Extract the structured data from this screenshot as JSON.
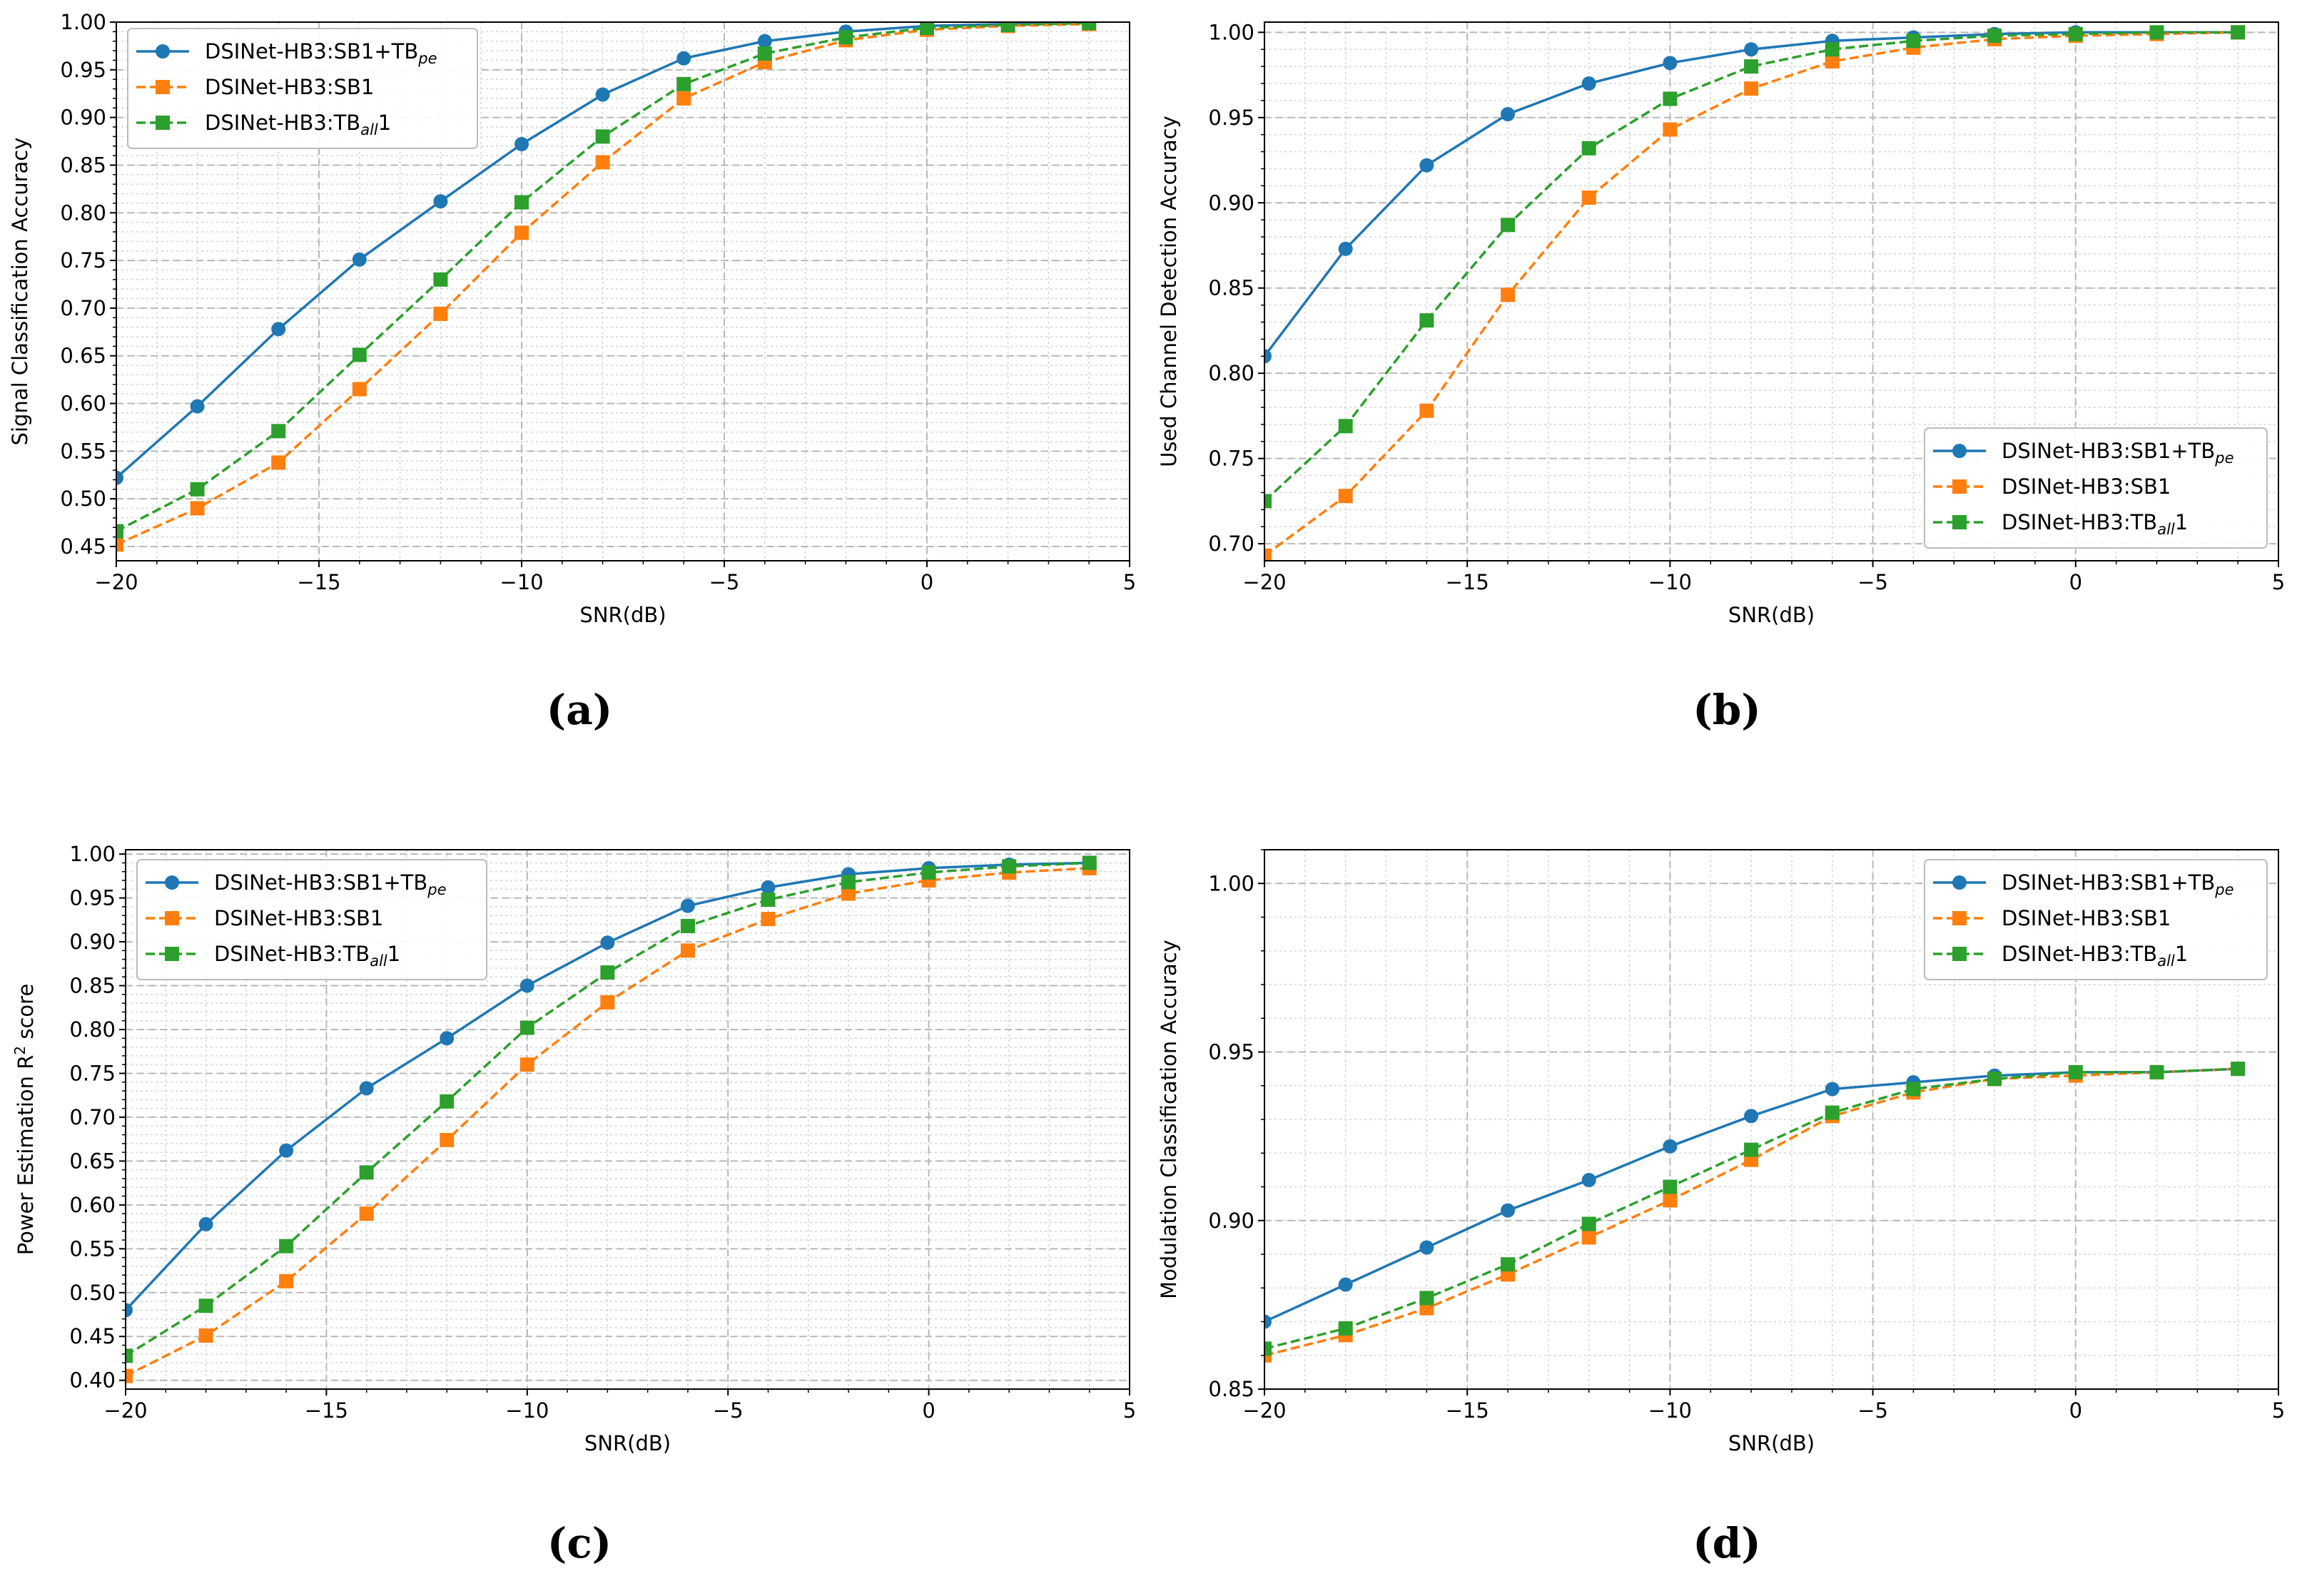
{
  "chart_data": [
    {
      "type": "line",
      "panel_label": "(a)",
      "xlabel": "SNR(dB)",
      "ylabel": "Signal Classification Accuracy",
      "xlim": [
        -20,
        5
      ],
      "ylim": [
        0.435,
        1.0
      ],
      "xticks": [
        -20,
        -15,
        -10,
        -5,
        0,
        5
      ],
      "xtick_labels": [
        "−20",
        "−15",
        "−10",
        "−5",
        "0",
        "5"
      ],
      "yticks": [
        0.45,
        0.5,
        0.55,
        0.6,
        0.65,
        0.7,
        0.75,
        0.8,
        0.85,
        0.9,
        0.95,
        1.0
      ],
      "ytick_labels": [
        "0.45",
        "0.50",
        "0.55",
        "0.60",
        "0.65",
        "0.70",
        "0.75",
        "0.80",
        "0.85",
        "0.90",
        "0.95",
        "1.00"
      ],
      "grid": true,
      "legend_position": "upper-left",
      "x": [
        -20,
        -18,
        -16,
        -14,
        -12,
        -10,
        -8,
        -6,
        -4,
        -2,
        0,
        2,
        4
      ],
      "series": [
        {
          "name_main": "DSINet-HB3:SB1+TB",
          "name_sub": "pe",
          "name_tail": "",
          "color": "#1f77b4",
          "dash": "solid",
          "marker": "circle",
          "values": [
            0.522,
            0.597,
            0.678,
            0.751,
            0.812,
            0.872,
            0.924,
            0.962,
            0.98,
            0.99,
            0.996,
            0.998,
            0.999
          ]
        },
        {
          "name_main": "DSINet-HB3:SB1",
          "name_sub": "",
          "name_tail": "",
          "color": "#ff7f0e",
          "dash": "dashed",
          "marker": "square",
          "values": [
            0.452,
            0.49,
            0.538,
            0.615,
            0.694,
            0.779,
            0.853,
            0.92,
            0.958,
            0.981,
            0.992,
            0.996,
            0.998
          ]
        },
        {
          "name_main": "DSINet-HB3:TB",
          "name_sub": "all",
          "name_tail": "1",
          "color": "#2ca02c",
          "dash": "dashed",
          "marker": "square",
          "values": [
            0.466,
            0.51,
            0.571,
            0.651,
            0.73,
            0.811,
            0.88,
            0.935,
            0.967,
            0.984,
            0.994,
            0.997,
            0.999
          ]
        }
      ]
    },
    {
      "type": "line",
      "panel_label": "(b)",
      "xlabel": "SNR(dB)",
      "ylabel": "Used Channel Detection Accuracy",
      "xlim": [
        -20,
        5
      ],
      "ylim": [
        0.69,
        1.006
      ],
      "xticks": [
        -20,
        -15,
        -10,
        -5,
        0,
        5
      ],
      "xtick_labels": [
        "−20",
        "−15",
        "−10",
        "−5",
        "0",
        "5"
      ],
      "yticks": [
        0.7,
        0.75,
        0.8,
        0.85,
        0.9,
        0.95,
        1.0
      ],
      "ytick_labels": [
        "0.70",
        "0.75",
        "0.80",
        "0.85",
        "0.90",
        "0.95",
        "1.00"
      ],
      "grid": true,
      "legend_position": "lower-right",
      "x": [
        -20,
        -18,
        -16,
        -14,
        -12,
        -10,
        -8,
        -6,
        -4,
        -2,
        0,
        2,
        4
      ],
      "series": [
        {
          "name_main": "DSINet-HB3:SB1+TB",
          "name_sub": "pe",
          "name_tail": "",
          "color": "#1f77b4",
          "dash": "solid",
          "marker": "circle",
          "values": [
            0.81,
            0.873,
            0.922,
            0.952,
            0.97,
            0.982,
            0.99,
            0.995,
            0.997,
            0.999,
            1.0,
            1.0,
            1.0
          ]
        },
        {
          "name_main": "DSINet-HB3:SB1",
          "name_sub": "",
          "name_tail": "",
          "color": "#ff7f0e",
          "dash": "dashed",
          "marker": "square",
          "values": [
            0.693,
            0.728,
            0.778,
            0.846,
            0.903,
            0.943,
            0.967,
            0.983,
            0.991,
            0.996,
            0.998,
            0.999,
            1.0
          ]
        },
        {
          "name_main": "DSINet-HB3:TB",
          "name_sub": "all",
          "name_tail": "1",
          "color": "#2ca02c",
          "dash": "dashed",
          "marker": "square",
          "values": [
            0.725,
            0.769,
            0.831,
            0.887,
            0.932,
            0.961,
            0.98,
            0.99,
            0.995,
            0.998,
            0.999,
            1.0,
            1.0
          ]
        }
      ]
    },
    {
      "type": "line",
      "panel_label": "(c)",
      "xlabel": "SNR(dB)",
      "ylabel_main": "Power Estimation R",
      "ylabel_sup": "2",
      "ylabel_tail": " score",
      "xlim": [
        -20,
        5
      ],
      "ylim": [
        0.39,
        1.005
      ],
      "xticks": [
        -20,
        -15,
        -10,
        -5,
        0,
        5
      ],
      "xtick_labels": [
        "−20",
        "−15",
        "−10",
        "−5",
        "0",
        "5"
      ],
      "yticks": [
        0.4,
        0.45,
        0.5,
        0.55,
        0.6,
        0.65,
        0.7,
        0.75,
        0.8,
        0.85,
        0.9,
        0.95,
        1.0
      ],
      "ytick_labels": [
        "0.40",
        "0.45",
        "0.50",
        "0.55",
        "0.60",
        "0.65",
        "0.70",
        "0.75",
        "0.80",
        "0.85",
        "0.90",
        "0.95",
        "1.00"
      ],
      "grid": true,
      "legend_position": "upper-left",
      "x": [
        -20,
        -18,
        -16,
        -14,
        -12,
        -10,
        -8,
        -6,
        -4,
        -2,
        0,
        2,
        4
      ],
      "series": [
        {
          "name_main": "DSINet-HB3:SB1+TB",
          "name_sub": "pe",
          "name_tail": "",
          "color": "#1f77b4",
          "dash": "solid",
          "marker": "circle",
          "values": [
            0.48,
            0.578,
            0.662,
            0.733,
            0.79,
            0.85,
            0.899,
            0.941,
            0.962,
            0.977,
            0.984,
            0.988,
            0.99
          ]
        },
        {
          "name_main": "DSINet-HB3:SB1",
          "name_sub": "",
          "name_tail": "",
          "color": "#ff7f0e",
          "dash": "dashed",
          "marker": "square",
          "values": [
            0.405,
            0.451,
            0.513,
            0.59,
            0.674,
            0.76,
            0.831,
            0.89,
            0.926,
            0.955,
            0.97,
            0.979,
            0.984
          ]
        },
        {
          "name_main": "DSINet-HB3:TB",
          "name_sub": "all",
          "name_tail": "1",
          "color": "#2ca02c",
          "dash": "dashed",
          "marker": "square",
          "values": [
            0.428,
            0.485,
            0.553,
            0.637,
            0.718,
            0.802,
            0.865,
            0.918,
            0.948,
            0.968,
            0.979,
            0.986,
            0.99
          ]
        }
      ]
    },
    {
      "type": "line",
      "panel_label": "(d)",
      "xlabel": "SNR(dB)",
      "ylabel": "Modulation Classification Accuracy",
      "xlim": [
        -20,
        5
      ],
      "ylim": [
        0.85,
        1.01
      ],
      "xticks": [
        -20,
        -15,
        -10,
        -5,
        0,
        5
      ],
      "xtick_labels": [
        "−20",
        "−15",
        "−10",
        "−5",
        "0",
        "5"
      ],
      "yticks": [
        0.85,
        0.9,
        0.95,
        1.0
      ],
      "ytick_labels": [
        "0.85",
        "0.90",
        "0.95",
        "1.00"
      ],
      "grid": true,
      "legend_position": "upper-right",
      "x": [
        -20,
        -18,
        -16,
        -14,
        -12,
        -10,
        -8,
        -6,
        -4,
        -2,
        0,
        2,
        4
      ],
      "series": [
        {
          "name_main": "DSINet-HB3:SB1+TB",
          "name_sub": "pe",
          "name_tail": "",
          "color": "#1f77b4",
          "dash": "solid",
          "marker": "circle",
          "values": [
            0.87,
            0.881,
            0.892,
            0.903,
            0.912,
            0.922,
            0.931,
            0.939,
            0.941,
            0.943,
            0.944,
            0.944,
            0.945
          ]
        },
        {
          "name_main": "DSINet-HB3:SB1",
          "name_sub": "",
          "name_tail": "",
          "color": "#ff7f0e",
          "dash": "dashed",
          "marker": "square",
          "values": [
            0.86,
            0.866,
            0.874,
            0.884,
            0.895,
            0.906,
            0.918,
            0.931,
            0.938,
            0.942,
            0.943,
            0.944,
            0.945
          ]
        },
        {
          "name_main": "DSINet-HB3:TB",
          "name_sub": "all",
          "name_tail": "1",
          "color": "#2ca02c",
          "dash": "dashed",
          "marker": "square",
          "values": [
            0.862,
            0.868,
            0.877,
            0.887,
            0.899,
            0.91,
            0.921,
            0.932,
            0.939,
            0.942,
            0.944,
            0.944,
            0.945
          ]
        }
      ]
    }
  ]
}
